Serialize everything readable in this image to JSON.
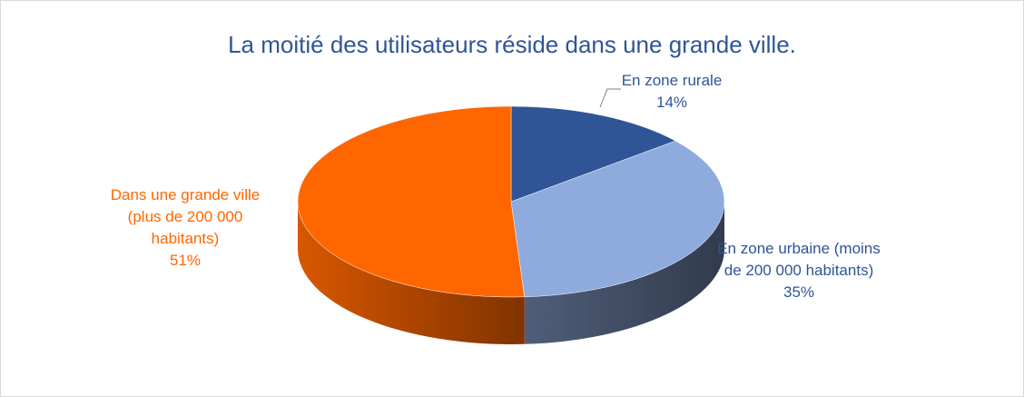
{
  "chart_data": {
    "type": "pie3d",
    "title": "La moitié des utilisateurs réside dans une grande ville.",
    "categories": [
      "En zone rurale",
      "En zone urbaine (moins de 200 000 habitants)",
      "Dans une grande ville (plus de 200 000 habitants)"
    ],
    "values": [
      14,
      35,
      51
    ],
    "value_labels": [
      "14%",
      "35%",
      "51%"
    ],
    "colors": [
      "#2f5597",
      "#8faadc",
      "#ff6600"
    ],
    "label_colors": [
      "#2f5597",
      "#2f5597",
      "#ff6600"
    ]
  }
}
